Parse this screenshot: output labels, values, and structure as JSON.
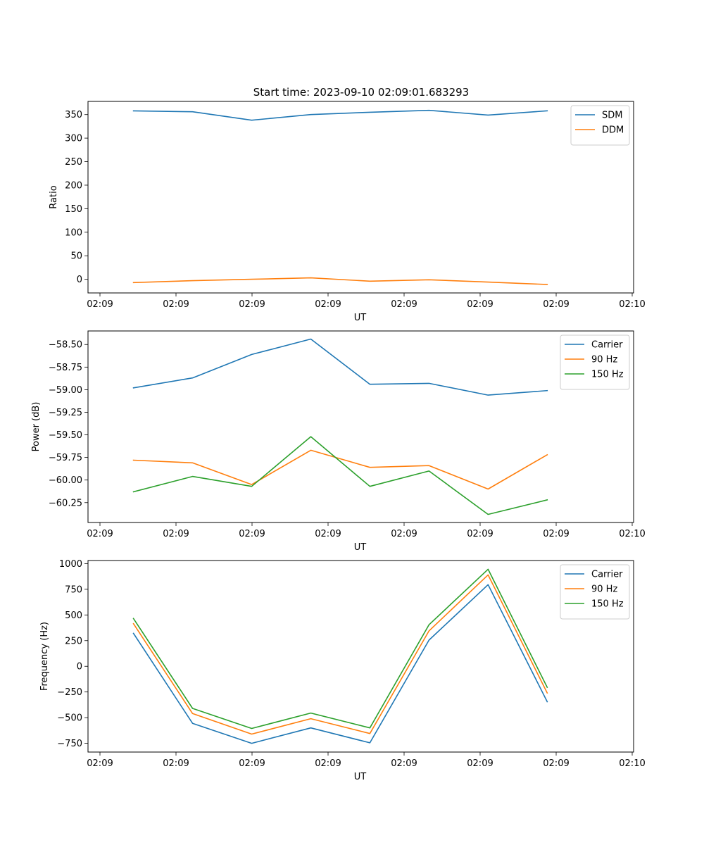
{
  "title": "Start time: 2023-09-10 02:09:01.683293",
  "chart_data": [
    {
      "type": "line",
      "title": "Start time: 2023-09-10 02:09:01.683293",
      "xlabel": "UT",
      "ylabel": "Ratio",
      "x_tick_labels": [
        "02:09",
        "02:09",
        "02:09",
        "02:09",
        "02:09",
        "02:09",
        "02:09",
        "02:10"
      ],
      "y_ticks": [
        0,
        50,
        100,
        150,
        200,
        250,
        300,
        350
      ],
      "y_tick_labels": [
        "0",
        "50",
        "100",
        "150",
        "200",
        "250",
        "300",
        "350"
      ],
      "xlim": [
        0,
        6
      ],
      "ylim": [
        -29,
        378
      ],
      "legend_position": "top-right",
      "x": [
        0.5,
        1.15,
        1.8,
        2.45,
        3.1,
        3.75,
        4.4,
        5.05
      ],
      "series": [
        {
          "name": "SDM",
          "color": "#1f77b4",
          "values": [
            358,
            356,
            338,
            350,
            355,
            359,
            349,
            358
          ]
        },
        {
          "name": "DDM",
          "color": "#ff7f0e",
          "values": [
            -7,
            -3,
            0,
            3,
            -4,
            -1,
            -6,
            -11
          ]
        }
      ]
    },
    {
      "type": "line",
      "title": "",
      "xlabel": "UT",
      "ylabel": "Power (dB)",
      "x_tick_labels": [
        "02:09",
        "02:09",
        "02:09",
        "02:09",
        "02:09",
        "02:09",
        "02:09",
        "02:10"
      ],
      "y_ticks": [
        -58.5,
        -58.75,
        -59.0,
        -59.25,
        -59.5,
        -59.75,
        -60.0,
        -60.25
      ],
      "y_tick_labels": [
        "−58.50",
        "−58.75",
        "−59.00",
        "−59.25",
        "−59.50",
        "−59.75",
        "−60.00",
        "−60.25"
      ],
      "xlim": [
        0,
        6
      ],
      "ylim": [
        -60.47,
        -58.35
      ],
      "legend_position": "top-right",
      "x": [
        0.5,
        1.15,
        1.8,
        2.45,
        3.1,
        3.75,
        4.4,
        5.05
      ],
      "series": [
        {
          "name": "Carrier",
          "color": "#1f77b4",
          "values": [
            -58.98,
            -58.87,
            -58.61,
            -58.44,
            -58.94,
            -58.93,
            -59.06,
            -59.01
          ]
        },
        {
          "name": "90 Hz",
          "color": "#ff7f0e",
          "values": [
            -59.78,
            -59.81,
            -60.05,
            -59.67,
            -59.86,
            -59.84,
            -60.1,
            -59.72
          ]
        },
        {
          "name": "150 Hz",
          "color": "#2ca02c",
          "values": [
            -60.13,
            -59.96,
            -60.07,
            -59.52,
            -60.07,
            -59.9,
            -60.38,
            -60.22
          ]
        }
      ]
    },
    {
      "type": "line",
      "title": "",
      "xlabel": "UT",
      "ylabel": "Frequency (Hz)",
      "x_tick_labels": [
        "02:09",
        "02:09",
        "02:09",
        "02:09",
        "02:09",
        "02:09",
        "02:09",
        "02:10"
      ],
      "y_ticks": [
        -750,
        -500,
        -250,
        0,
        250,
        500,
        750,
        1000
      ],
      "y_tick_labels": [
        "−750",
        "−500",
        "−250",
        "0",
        "250",
        "500",
        "750",
        "1000"
      ],
      "xlim": [
        0,
        6
      ],
      "ylim": [
        -835,
        1030
      ],
      "legend_position": "top-right",
      "x": [
        0.5,
        1.15,
        1.8,
        2.45,
        3.1,
        3.75,
        4.4,
        5.05
      ],
      "series": [
        {
          "name": "Carrier",
          "color": "#1f77b4",
          "values": [
            320,
            -555,
            -750,
            -600,
            -745,
            255,
            795,
            -345
          ]
        },
        {
          "name": "90 Hz",
          "color": "#ff7f0e",
          "values": [
            415,
            -460,
            -660,
            -510,
            -655,
            345,
            890,
            -260
          ]
        },
        {
          "name": "150 Hz",
          "color": "#2ca02c",
          "values": [
            465,
            -410,
            -605,
            -455,
            -600,
            405,
            945,
            -205
          ]
        }
      ]
    }
  ]
}
